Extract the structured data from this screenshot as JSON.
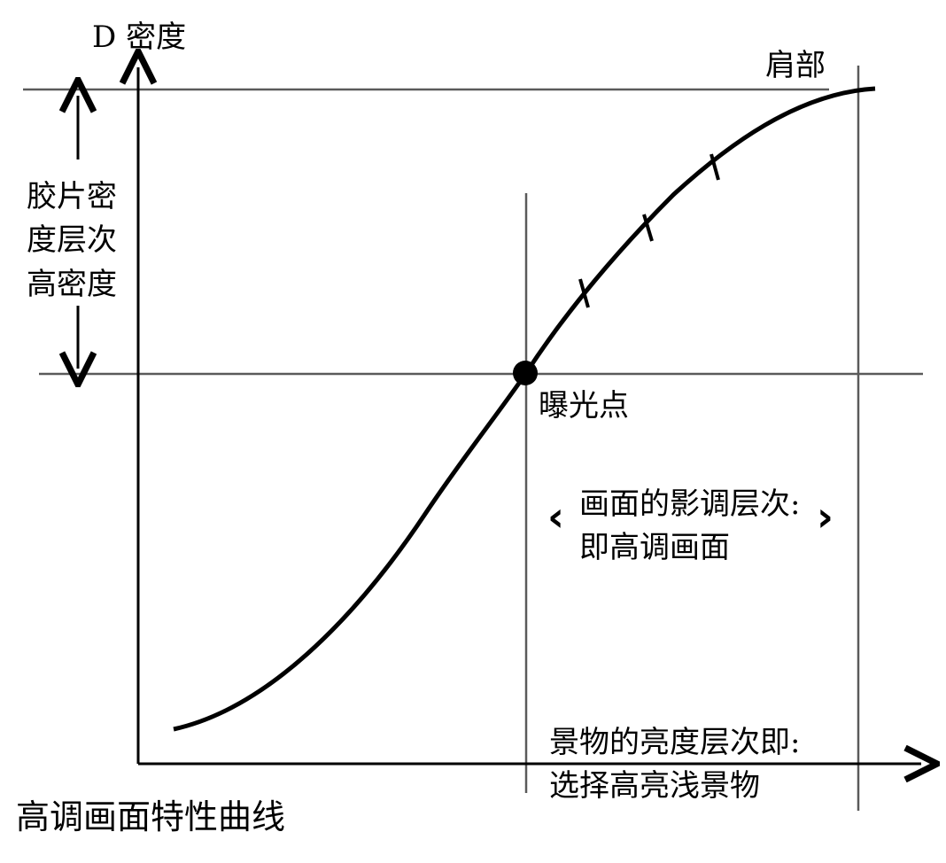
{
  "diagram": {
    "y_axis_label": "D 密度",
    "shoulder_label": "肩部",
    "film_density_lines": [
      "胶片密",
      "度层次",
      "高密度"
    ],
    "exposure_point_label": "曝光点",
    "tone_lines": [
      "画面的影调层次:",
      "即高调画面"
    ],
    "brightness_lines": [
      "景物的亮度层次即:",
      "选择高亮浅景物"
    ],
    "caption": "高调画面特性曲线",
    "bracket_left": "‹",
    "bracket_right": "›",
    "colors": {
      "line": "#000000",
      "guide": "#5a5a5a",
      "background": "#ffffff"
    }
  }
}
